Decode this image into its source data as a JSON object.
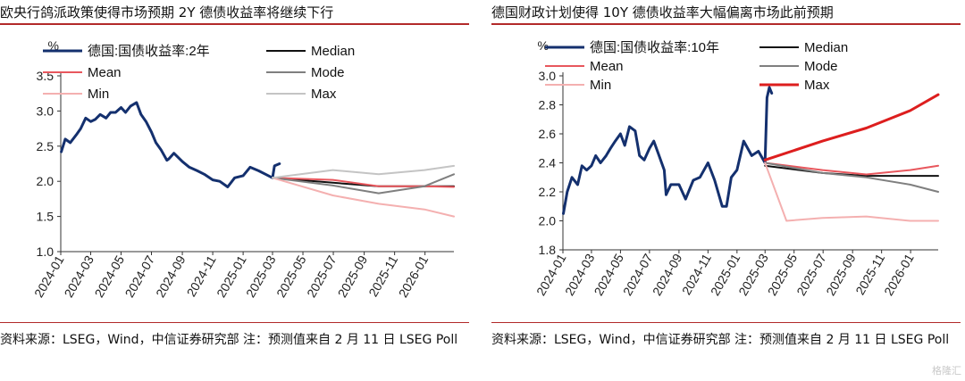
{
  "chart_data": [
    {
      "type": "line",
      "title": "欧央行鸽派政策使得市场预期 2Y 德债收益率将继续下行",
      "ylabel": "%",
      "ylim": [
        1.0,
        3.5
      ],
      "yticks": [
        "1.0",
        "1.5",
        "2.0",
        "2.5",
        "3.0",
        "3.5"
      ],
      "xlim": [
        "2024-01-01",
        "2026-02-28"
      ],
      "xticks": [
        "2024-01",
        "2024-03",
        "2024-05",
        "2024-07",
        "2024-09",
        "2024-11",
        "2025-01",
        "2025-03",
        "2025-05",
        "2025-07",
        "2025-09",
        "2025-11",
        "2026-01"
      ],
      "legend": [
        "德国:国债收益率:2年",
        "Median",
        "Mean",
        "Mode",
        "Min",
        "Max"
      ],
      "series": [
        {
          "name": "德国:国债收益率:2年",
          "color": "#14306e",
          "width": 3,
          "x": [
            "2024-01-02",
            "2024-01-10",
            "2024-01-20",
            "2024-02-01",
            "2024-02-10",
            "2024-02-20",
            "2024-03-01",
            "2024-03-10",
            "2024-03-20",
            "2024-04-01",
            "2024-04-10",
            "2024-04-20",
            "2024-05-01",
            "2024-05-10",
            "2024-05-20",
            "2024-06-01",
            "2024-06-10",
            "2024-06-20",
            "2024-07-01",
            "2024-07-10",
            "2024-07-20",
            "2024-08-01",
            "2024-08-05",
            "2024-08-15",
            "2024-09-01",
            "2024-09-15",
            "2024-10-01",
            "2024-10-15",
            "2024-11-01",
            "2024-11-15",
            "2024-12-01",
            "2024-12-15",
            "2025-01-01",
            "2025-01-15",
            "2025-02-01",
            "2025-02-15",
            "2025-03-01",
            "2025-03-05",
            "2025-03-15"
          ],
          "values": [
            2.42,
            2.6,
            2.55,
            2.66,
            2.75,
            2.9,
            2.85,
            2.88,
            2.95,
            2.9,
            2.98,
            2.98,
            3.05,
            2.98,
            3.07,
            3.12,
            2.95,
            2.85,
            2.7,
            2.55,
            2.45,
            2.3,
            2.32,
            2.4,
            2.28,
            2.2,
            2.15,
            2.1,
            2.02,
            2.0,
            1.92,
            2.05,
            2.08,
            2.2,
            2.15,
            2.1,
            2.05,
            2.22,
            2.25
          ]
        },
        {
          "name": "Median",
          "color": "#111111",
          "width": 2,
          "x": [
            "2025-03-01",
            "2025-06-30",
            "2025-09-30",
            "2025-12-31",
            "2026-02-28"
          ],
          "values": [
            2.05,
            1.98,
            1.93,
            1.93,
            1.93
          ]
        },
        {
          "name": "Mean",
          "color": "#e8575d",
          "width": 2,
          "x": [
            "2025-03-01",
            "2025-06-30",
            "2025-09-30",
            "2025-12-31",
            "2026-02-28"
          ],
          "values": [
            2.05,
            2.02,
            1.93,
            1.93,
            1.92
          ]
        },
        {
          "name": "Mode",
          "color": "#7f7f7f",
          "width": 2,
          "x": [
            "2025-03-01",
            "2025-06-30",
            "2025-09-30",
            "2025-12-31",
            "2026-02-28"
          ],
          "values": [
            2.05,
            1.94,
            1.83,
            1.93,
            2.1
          ]
        },
        {
          "name": "Min",
          "color": "#f4b0b0",
          "width": 2,
          "x": [
            "2025-03-01",
            "2025-06-30",
            "2025-09-30",
            "2025-12-31",
            "2026-02-28"
          ],
          "values": [
            2.05,
            1.8,
            1.68,
            1.6,
            1.5
          ]
        },
        {
          "name": "Max",
          "color": "#c4c4c4",
          "width": 2,
          "x": [
            "2025-03-01",
            "2025-06-30",
            "2025-09-30",
            "2025-12-31",
            "2026-02-28"
          ],
          "values": [
            2.05,
            2.16,
            2.1,
            2.16,
            2.22
          ]
        }
      ]
    },
    {
      "type": "line",
      "title": "德国财政计划使得 10Y 德债收益率大幅偏离市场此前预期",
      "ylabel": "%",
      "ylim": [
        1.8,
        3.0
      ],
      "yticks": [
        "1.8",
        "2.0",
        "2.2",
        "2.4",
        "2.6",
        "2.8",
        "3.0"
      ],
      "xlim": [
        "2024-01-01",
        "2026-02-28"
      ],
      "xticks": [
        "2024-01",
        "2024-03",
        "2024-05",
        "2024-07",
        "2024-09",
        "2024-11",
        "2025-01",
        "2025-03",
        "2025-05",
        "2025-07",
        "2025-09",
        "2025-11",
        "2026-01"
      ],
      "legend": [
        "德国:国债收益率:10年",
        "Median",
        "Mean",
        "Mode",
        "Min",
        "Max"
      ],
      "series": [
        {
          "name": "德国:国债收益率:10年",
          "color": "#14306e",
          "width": 3,
          "x": [
            "2024-01-02",
            "2024-01-10",
            "2024-01-20",
            "2024-02-01",
            "2024-02-10",
            "2024-02-20",
            "2024-03-01",
            "2024-03-10",
            "2024-03-20",
            "2024-04-01",
            "2024-04-10",
            "2024-04-20",
            "2024-05-01",
            "2024-05-10",
            "2024-05-20",
            "2024-06-01",
            "2024-06-10",
            "2024-06-20",
            "2024-07-01",
            "2024-07-10",
            "2024-07-20",
            "2024-08-01",
            "2024-08-05",
            "2024-08-15",
            "2024-09-01",
            "2024-09-15",
            "2024-10-01",
            "2024-10-15",
            "2024-11-01",
            "2024-11-15",
            "2024-12-01",
            "2024-12-10",
            "2024-12-20",
            "2025-01-01",
            "2025-01-15",
            "2025-02-01",
            "2025-02-15",
            "2025-03-01",
            "2025-03-05",
            "2025-03-10",
            "2025-03-15"
          ],
          "values": [
            2.05,
            2.2,
            2.3,
            2.25,
            2.38,
            2.35,
            2.38,
            2.45,
            2.4,
            2.45,
            2.5,
            2.55,
            2.6,
            2.52,
            2.65,
            2.62,
            2.45,
            2.42,
            2.5,
            2.55,
            2.46,
            2.35,
            2.18,
            2.25,
            2.25,
            2.15,
            2.28,
            2.3,
            2.4,
            2.28,
            2.1,
            2.1,
            2.3,
            2.35,
            2.55,
            2.45,
            2.48,
            2.4,
            2.85,
            2.92,
            2.88
          ]
        },
        {
          "name": "Median",
          "color": "#111111",
          "width": 2,
          "x": [
            "2025-03-01",
            "2025-06-30",
            "2025-09-30",
            "2025-12-31",
            "2026-02-28"
          ],
          "values": [
            2.38,
            2.33,
            2.31,
            2.31,
            2.31
          ]
        },
        {
          "name": "Mean",
          "color": "#e8575d",
          "width": 2,
          "x": [
            "2025-03-01",
            "2025-06-30",
            "2025-09-30",
            "2025-12-31",
            "2026-02-28"
          ],
          "values": [
            2.4,
            2.35,
            2.32,
            2.35,
            2.38
          ]
        },
        {
          "name": "Mode",
          "color": "#7f7f7f",
          "width": 2,
          "x": [
            "2025-03-01",
            "2025-06-30",
            "2025-09-30",
            "2025-12-31",
            "2026-02-28"
          ],
          "values": [
            2.4,
            2.33,
            2.3,
            2.25,
            2.2
          ]
        },
        {
          "name": "Min",
          "color": "#f4b0b0",
          "width": 2,
          "x": [
            "2025-03-01",
            "2025-04-15",
            "2025-06-30",
            "2025-09-30",
            "2025-12-31",
            "2026-02-28"
          ],
          "values": [
            2.4,
            2.0,
            2.02,
            2.03,
            2.0,
            2.0
          ]
        },
        {
          "name": "Max",
          "color": "#dd1e1e",
          "width": 3,
          "x": [
            "2025-03-01",
            "2025-06-30",
            "2025-09-30",
            "2025-12-31",
            "2026-02-28"
          ],
          "values": [
            2.42,
            2.55,
            2.64,
            2.76,
            2.87
          ]
        }
      ]
    }
  ],
  "panels": [
    {
      "title": "欧央行鸽派政策使得市场预期 2Y 德债收益率将继续下行",
      "source": "资料来源：LSEG，Wind，中信证券研究部 注：预测值来自 2 月 11 日 LSEG Poll"
    },
    {
      "title": "德国财政计划使得 10Y 德债收益率大幅偏离市场此前预期",
      "source": "资料来源：LSEG，Wind，中信证券研究部 注：预测值来自 2 月 11 日 LSEG Poll"
    }
  ],
  "watermark": "格隆汇"
}
